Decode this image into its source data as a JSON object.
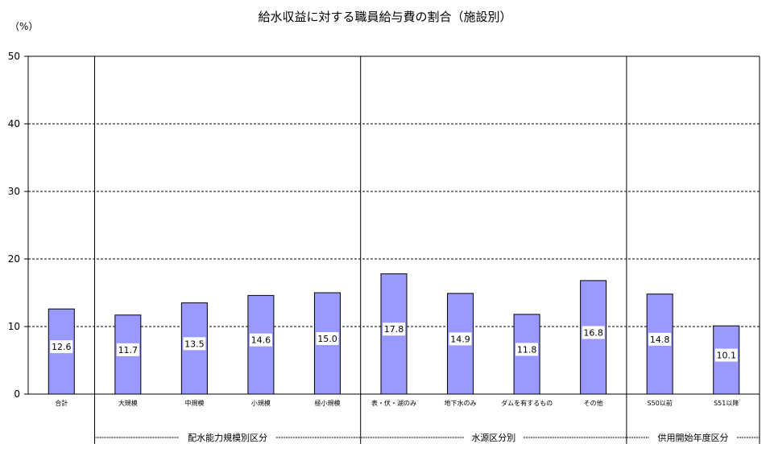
{
  "chart_data": {
    "type": "bar",
    "title": "給水収益に対する職員給与費の割合（施設別）",
    "ylabel": "（%）",
    "ylim": [
      0,
      50
    ],
    "yticks": [
      0,
      10,
      20,
      30,
      40,
      50
    ],
    "grid": true,
    "categories": [
      "合計",
      "大規模",
      "中規模",
      "小規模",
      "極小規模",
      "表・伏・湖のみ",
      "地下水のみ",
      "ダムを有するもの",
      "その他",
      "S50以前",
      "S51以降"
    ],
    "values": [
      12.6,
      11.7,
      13.5,
      14.6,
      15.0,
      17.8,
      14.9,
      11.8,
      16.8,
      14.8,
      10.1
    ],
    "value_labels": [
      "12.6",
      "11.7",
      "13.5",
      "14.6",
      "15.0",
      "17.8",
      "14.9",
      "11.8",
      "16.8",
      "14.8",
      "10.1"
    ],
    "groups": [
      {
        "label": "配水能力規模別区分",
        "first": 1,
        "last": 4
      },
      {
        "label": "水源区分別",
        "first": 5,
        "last": 8
      },
      {
        "label": "供用開始年度区分",
        "first": 9,
        "last": 10
      }
    ],
    "colors": {
      "bar": "#9999ff",
      "bar_stroke": "#000000",
      "grid": "#000000"
    }
  }
}
